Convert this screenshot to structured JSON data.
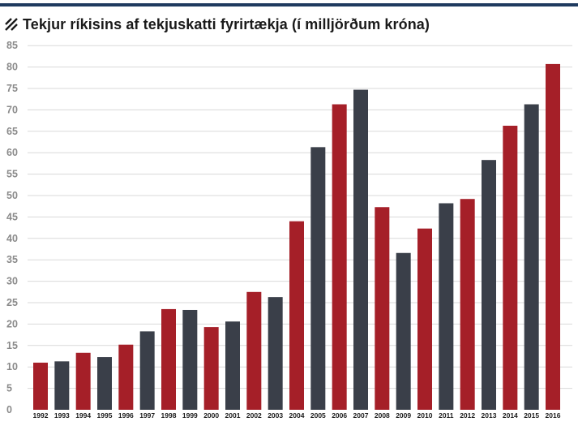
{
  "title": "Tekjur ríkisins af tekjuskatti fyrirtækja (í milljörðum króna)",
  "title_icon": "diagonal-stripes-icon",
  "colors": {
    "red": "#a51f28",
    "dark": "#3a3f49",
    "grid": "#d9d9d9",
    "rule": "#1f3a5f"
  },
  "chart_data": {
    "type": "bar",
    "title": "Tekjur ríkisins af tekjuskatti fyrirtækja (í milljörðum króna)",
    "xlabel": "",
    "ylabel": "",
    "ylim": [
      0,
      85
    ],
    "yticks": [
      0,
      5,
      10,
      15,
      20,
      25,
      30,
      35,
      40,
      45,
      50,
      55,
      60,
      65,
      70,
      75,
      80,
      85
    ],
    "grid": true,
    "categories": [
      "1992",
      "1993",
      "1994",
      "1995",
      "1996",
      "1997",
      "1998",
      "1999",
      "2000",
      "2001",
      "2002",
      "2003",
      "2004",
      "2005",
      "2006",
      "2007",
      "2008",
      "2009",
      "2010",
      "2011",
      "2012",
      "2013",
      "2014",
      "2015",
      "2016"
    ],
    "values": [
      11,
      11.3,
      13.3,
      12.3,
      15.2,
      18.3,
      23.5,
      23.3,
      19.3,
      20.6,
      27.5,
      26.3,
      44,
      61.3,
      71.3,
      74.7,
      47.3,
      36.6,
      42.3,
      48.2,
      49.2,
      58.3,
      66.3,
      71.3,
      80.7
    ],
    "bar_colors": [
      "red",
      "dark",
      "red",
      "dark",
      "red",
      "dark",
      "red",
      "dark",
      "red",
      "dark",
      "red",
      "dark",
      "red",
      "dark",
      "red",
      "dark",
      "red",
      "dark",
      "red",
      "dark",
      "red",
      "dark",
      "red",
      "dark",
      "red"
    ]
  }
}
